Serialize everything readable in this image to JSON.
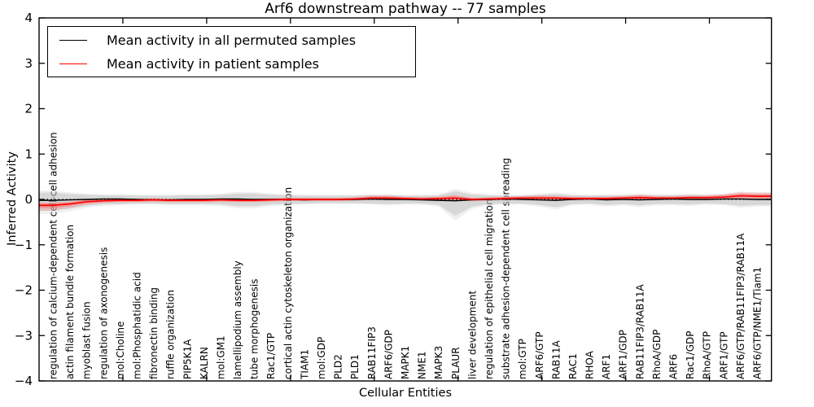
{
  "title": "Arf6 downstream pathway -- 77 samples",
  "axes": {
    "xlabel": "Cellular Entities",
    "ylabel": "Inferred Activity"
  },
  "legend": {
    "items": [
      {
        "label": "Mean activity in all permuted samples",
        "color": "#000000"
      },
      {
        "label": "Mean activity in patient samples",
        "color": "#ff0000"
      }
    ]
  },
  "chart_data": {
    "type": "line",
    "title": "Arf6 downstream pathway -- 77 samples",
    "xlabel": "Cellular Entities",
    "ylabel": "Inferred Activity",
    "ylim": [
      -4,
      4
    ],
    "yticks": [
      -4,
      -3,
      -2,
      -1,
      0,
      1,
      2,
      3,
      4
    ],
    "grid": false,
    "legend_position": "upper left",
    "baseline": 0,
    "categories": [
      "regulation of calcium-dependent cell-cell adhesion",
      "actin filament bundle formation",
      "myoblast fusion",
      "regulation of axonogenesis",
      "mol:Choline",
      "mol:Phosphatidic acid",
      "fibronectin binding",
      "ruffle organization",
      "PIP5K1A",
      "KALRN",
      "mol:GM1",
      "lamellipodium assembly",
      "tube morphogenesis",
      "Rac1/GTP",
      "cortical actin cytoskeleton organization",
      "TIAM1",
      "mol:GDP",
      "PLD2",
      "PLD1",
      "RAB11FIP3",
      "ARF6/GDP",
      "MAPK1",
      "NME1",
      "MAPK3",
      "PLAUR",
      "liver development",
      "regulation of epithelial cell migration",
      "substrate adhesion-dependent cell spreading",
      "mol:GTP",
      "ARF6/GTP",
      "RAB11A",
      "RAC1",
      "RHOA",
      "ARF1",
      "ARF1/GDP",
      "RAB11FIP3/RAB11A",
      "RhoA/GDP",
      "ARF6",
      "Rac1/GDP",
      "RhoA/GTP",
      "ARF1/GTP",
      "ARF6/GTP/RAB11FIP3/RAB11A",
      "ARF6/GTP/NME1/Tiam1"
    ],
    "series": [
      {
        "name": "Mean activity in all permuted samples",
        "color": "#000000",
        "values": [
          -0.02,
          -0.01,
          0.0,
          0.01,
          0.01,
          0.0,
          -0.01,
          -0.01,
          0.0,
          0.0,
          0.01,
          0.01,
          0.0,
          0.0,
          0.0,
          -0.01,
          0.0,
          0.0,
          0.0,
          0.01,
          0.0,
          0.0,
          -0.01,
          -0.02,
          -0.03,
          -0.01,
          0.0,
          0.01,
          0.0,
          -0.01,
          -0.02,
          0.0,
          0.01,
          -0.01,
          0.0,
          -0.01,
          0.0,
          0.01,
          0.0,
          0.0,
          0.01,
          0.01,
          0.0
        ]
      },
      {
        "name": "Mean activity in patient samples",
        "color": "#ff0000",
        "values": [
          -0.13,
          -0.1,
          -0.05,
          -0.03,
          -0.02,
          -0.02,
          -0.01,
          -0.02,
          -0.02,
          -0.02,
          -0.01,
          -0.02,
          -0.02,
          -0.01,
          0.0,
          0.0,
          0.0,
          0.0,
          0.01,
          0.03,
          0.03,
          0.02,
          0.01,
          0.02,
          0.03,
          0.0,
          0.01,
          0.02,
          0.03,
          0.03,
          0.03,
          0.02,
          0.02,
          0.02,
          0.03,
          0.04,
          0.03,
          0.03,
          0.04,
          0.04,
          0.05,
          0.08,
          0.07
        ]
      }
    ],
    "bands": [
      {
        "name": "permuted samples spread",
        "color": "#bdbdbd",
        "opacity": 0.5,
        "upper": [
          0.15,
          0.12,
          0.1,
          0.09,
          0.09,
          0.08,
          0.08,
          0.08,
          0.09,
          0.09,
          0.1,
          0.13,
          0.13,
          0.1,
          0.09,
          0.08,
          0.08,
          0.08,
          0.08,
          0.09,
          0.09,
          0.08,
          0.08,
          0.09,
          0.18,
          0.11,
          0.09,
          0.08,
          0.08,
          0.1,
          0.12,
          0.09,
          0.08,
          0.09,
          0.09,
          0.1,
          0.09,
          0.09,
          0.1,
          0.09,
          0.1,
          0.13,
          0.12
        ],
        "lower": [
          -0.25,
          -0.2,
          -0.14,
          -0.11,
          -0.1,
          -0.09,
          -0.09,
          -0.1,
          -0.1,
          -0.1,
          -0.11,
          -0.15,
          -0.15,
          -0.11,
          -0.1,
          -0.09,
          -0.08,
          -0.08,
          -0.08,
          -0.09,
          -0.1,
          -0.09,
          -0.09,
          -0.12,
          -0.36,
          -0.16,
          -0.1,
          -0.09,
          -0.09,
          -0.12,
          -0.17,
          -0.1,
          -0.09,
          -0.12,
          -0.1,
          -0.13,
          -0.1,
          -0.1,
          -0.11,
          -0.09,
          -0.1,
          -0.14,
          -0.12
        ]
      },
      {
        "name": "patient samples spread",
        "color": "#ff6666",
        "opacity": 0.45,
        "upper": [
          -0.07,
          -0.05,
          -0.01,
          0.0,
          0.01,
          0.01,
          0.02,
          0.01,
          0.01,
          0.01,
          0.02,
          0.01,
          0.01,
          0.02,
          0.03,
          0.03,
          0.03,
          0.03,
          0.04,
          0.07,
          0.07,
          0.05,
          0.04,
          0.05,
          0.08,
          0.03,
          0.04,
          0.05,
          0.06,
          0.07,
          0.06,
          0.05,
          0.05,
          0.05,
          0.06,
          0.08,
          0.06,
          0.06,
          0.07,
          0.07,
          0.09,
          0.13,
          0.12
        ],
        "lower": [
          -0.19,
          -0.15,
          -0.09,
          -0.06,
          -0.05,
          -0.05,
          -0.04,
          -0.05,
          -0.05,
          -0.05,
          -0.04,
          -0.05,
          -0.05,
          -0.04,
          -0.03,
          -0.03,
          -0.03,
          -0.03,
          -0.02,
          -0.01,
          -0.01,
          -0.01,
          -0.02,
          -0.01,
          -0.02,
          -0.03,
          -0.02,
          -0.01,
          0.0,
          -0.01,
          0.0,
          -0.01,
          -0.01,
          -0.01,
          0.0,
          0.0,
          0.0,
          0.0,
          0.01,
          0.01,
          0.01,
          0.03,
          0.02
        ]
      }
    ]
  }
}
